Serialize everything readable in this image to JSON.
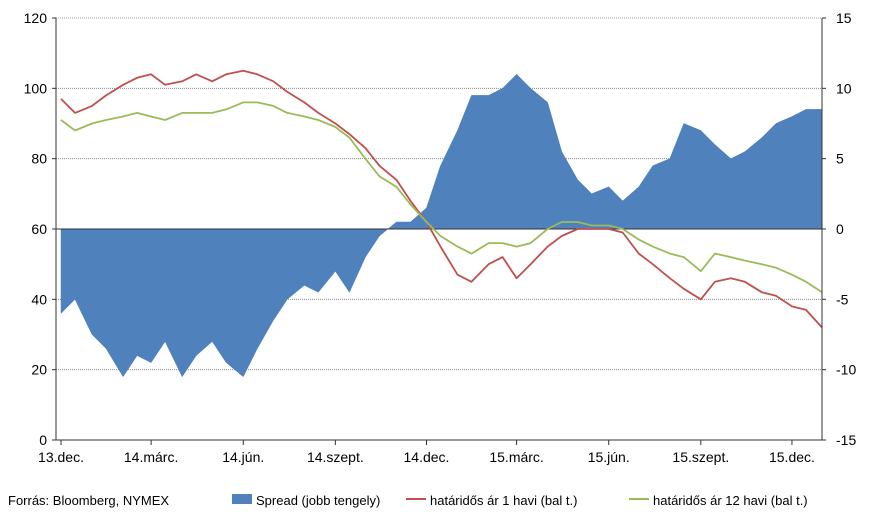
{
  "chart_data": {
    "type": "area+line",
    "source_note": "Forrás: Bloomberg, NYMEX",
    "x_tick_labels": [
      "13.dec.",
      "14.márc.",
      "14.jún.",
      "14.szept.",
      "14.dec.",
      "15.márc.",
      "15.jún.",
      "15.szept.",
      "15.dec."
    ],
    "x_months": [
      "2013-12",
      "2014-03",
      "2014-06",
      "2014-09",
      "2014-12",
      "2015-03",
      "2015-06",
      "2015-09",
      "2015-12"
    ],
    "y_left": {
      "ticks": [
        0,
        20,
        40,
        60,
        80,
        100,
        120
      ],
      "ylim": [
        0,
        120
      ]
    },
    "y_right": {
      "ticks": [
        -15,
        -10,
        -5,
        0,
        5,
        10,
        15
      ],
      "ylim": [
        -15,
        15
      ]
    },
    "grid": "horizontal",
    "legend_position": "bottom",
    "x": [
      "2013-12-01",
      "2013-12-15",
      "2014-01-01",
      "2014-01-15",
      "2014-02-01",
      "2014-02-15",
      "2014-03-01",
      "2014-03-15",
      "2014-04-01",
      "2014-04-15",
      "2014-05-01",
      "2014-05-15",
      "2014-06-01",
      "2014-06-15",
      "2014-07-01",
      "2014-07-15",
      "2014-08-01",
      "2014-08-15",
      "2014-09-01",
      "2014-09-15",
      "2014-10-01",
      "2014-10-15",
      "2014-11-01",
      "2014-11-15",
      "2014-12-01",
      "2014-12-15",
      "2015-01-01",
      "2015-01-15",
      "2015-02-01",
      "2015-02-15",
      "2015-03-01",
      "2015-03-15",
      "2015-04-01",
      "2015-04-15",
      "2015-05-01",
      "2015-05-15",
      "2015-06-01",
      "2015-06-15",
      "2015-07-01",
      "2015-07-15",
      "2015-08-01",
      "2015-08-15",
      "2015-09-01",
      "2015-09-15",
      "2015-10-01",
      "2015-10-15",
      "2015-11-01",
      "2015-11-15",
      "2015-12-01",
      "2015-12-15",
      "2015-12-31"
    ],
    "series": [
      {
        "name": "Spread (jobb tengely)",
        "axis": "right",
        "kind": "area",
        "color": "#4f81bd",
        "values": [
          -6.0,
          -5.0,
          -7.5,
          -8.5,
          -10.5,
          -9.0,
          -9.5,
          -8.0,
          -10.5,
          -9.0,
          -8.0,
          -9.5,
          -10.5,
          -8.5,
          -6.5,
          -5.0,
          -4.0,
          -4.5,
          -3.0,
          -4.5,
          -2.0,
          -0.5,
          0.5,
          0.5,
          1.5,
          4.5,
          7.0,
          9.5,
          9.5,
          10.0,
          11.0,
          10.0,
          9.0,
          5.5,
          3.5,
          2.5,
          3.0,
          2.0,
          3.0,
          4.5,
          5.0,
          7.5,
          7.0,
          6.0,
          5.0,
          5.5,
          6.5,
          7.5,
          8.0,
          8.5,
          8.5
        ]
      },
      {
        "name": "határidős ár 1 havi (bal t.)",
        "axis": "left",
        "kind": "line",
        "color": "#c0504d",
        "values": [
          97,
          93,
          95,
          98,
          101,
          103,
          104,
          101,
          102,
          104,
          102,
          104,
          105,
          104,
          102,
          99,
          96,
          93,
          90,
          87,
          83,
          78,
          74,
          68,
          62,
          55,
          47,
          45,
          50,
          52,
          46,
          50,
          55,
          58,
          60,
          60,
          60,
          59,
          53,
          50,
          46,
          43,
          40,
          45,
          46,
          45,
          42,
          41,
          38,
          37,
          32
        ]
      },
      {
        "name": "határidős ár 12 havi (bal t.)",
        "axis": "left",
        "kind": "line",
        "color": "#9bbb59",
        "values": [
          91,
          88,
          90,
          91,
          92,
          93,
          92,
          91,
          93,
          93,
          93,
          94,
          96,
          96,
          95,
          93,
          92,
          91,
          89,
          86,
          80,
          75,
          72,
          67,
          62,
          58,
          55,
          53,
          56,
          56,
          55,
          56,
          60,
          62,
          62,
          61,
          61,
          60,
          57,
          55,
          53,
          52,
          48,
          53,
          52,
          51,
          50,
          49,
          47,
          45,
          42
        ]
      }
    ]
  }
}
